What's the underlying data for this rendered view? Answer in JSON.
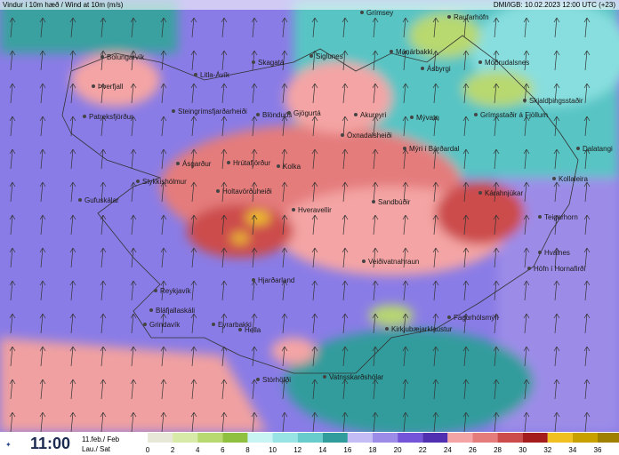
{
  "header": {
    "left": "Vindur í 10m hæð / Wind at 10m (m/s)",
    "right": "DMI/IGB: 10.02.2023 12:00 UTC (+23)"
  },
  "footer": {
    "time": "11:00",
    "date": "11.feb./ Feb",
    "day": "Lau./ Sat"
  },
  "legend": {
    "ticks": [
      0,
      2,
      4,
      6,
      8,
      10,
      12,
      14,
      16,
      18,
      20,
      22,
      24,
      26,
      28,
      30,
      32,
      34,
      36
    ],
    "colors": [
      "#e8e8d8",
      "#d8eaa8",
      "#b8d870",
      "#90c040",
      "#c8f4f4",
      "#98e4e4",
      "#68cccc",
      "#309c9c",
      "#c4bcf4",
      "#9c8ce8",
      "#7454d8",
      "#5030b0",
      "#f4a4a4",
      "#e47c7c",
      "#cc4c4c",
      "#a41c1c",
      "#f0c020",
      "#c8a000",
      "#a08000"
    ]
  },
  "places": [
    "Grímsey",
    "Raufarhöfn",
    "Bolungarvík",
    "Skagatá",
    "Siglunes",
    "Mánárbakki",
    "Ásbyrgi",
    "Möðrudalsnes",
    "Litla-Ávík",
    "Þverfjall",
    "Patreksfjörður",
    "Steingrímsfjarðarheiði",
    "Blönduós",
    "Gjögurtá",
    "Akureyri",
    "Mývatn",
    "Grímsstaðir á Fjöllum",
    "Skjaldþingsstaðir",
    "Öxnadalsheiði",
    "Mýri í Bárðardal",
    "Dalatangi",
    "Ásgarður",
    "Hrútafjörður",
    "Kolka",
    "Stykkishólmur",
    "Kollaleira",
    "Holtavörðuheiði",
    "Gufuskálar",
    "Kárahnjúkar",
    "Hveravellir",
    "Sandbúðir",
    "Teigarhorn",
    "Hvalnes",
    "Höfn í Hornafirði",
    "Veiðivatnahraun",
    "Hjarðarland",
    "Reykjavík",
    "Bláfjallaskáli",
    "Grindavík",
    "Eyrarbakki",
    "Hella",
    "Fagurhólsmýri",
    "Kirkjubæjarklaustur",
    "Stórhöfði",
    "Vatnsskarðshólar"
  ]
}
